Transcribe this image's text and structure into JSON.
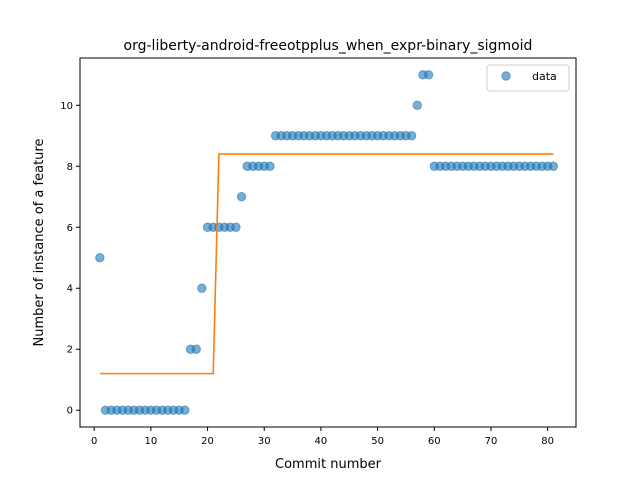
{
  "chart_data": {
    "type": "scatter",
    "title": "org-liberty-android-freeotpplus_when_expr-binary_sigmoid",
    "xlabel": "Commit number",
    "ylabel": "Number of instance of a feature",
    "xlim": [
      -2.5,
      85
    ],
    "ylim": [
      -0.55,
      11.55
    ],
    "xticks": [
      0,
      10,
      20,
      30,
      40,
      50,
      60,
      70,
      80
    ],
    "yticks": [
      0,
      2,
      4,
      6,
      8,
      10
    ],
    "grid": false,
    "legend_position": "top-right",
    "series": [
      {
        "name": "data",
        "kind": "scatter",
        "color": "#1f77b4",
        "x": [
          1,
          2,
          3,
          4,
          5,
          6,
          7,
          8,
          9,
          10,
          11,
          12,
          13,
          14,
          15,
          16,
          17,
          18,
          19,
          20,
          21,
          22,
          23,
          24,
          25,
          26,
          27,
          28,
          29,
          30,
          31,
          32,
          33,
          34,
          35,
          36,
          37,
          38,
          39,
          40,
          41,
          42,
          43,
          44,
          45,
          46,
          47,
          48,
          49,
          50,
          51,
          52,
          53,
          54,
          55,
          56,
          57,
          58,
          59,
          60,
          61,
          62,
          63,
          64,
          65,
          66,
          67,
          68,
          69,
          70,
          71,
          72,
          73,
          74,
          75,
          76,
          77,
          78,
          79,
          80,
          81
        ],
        "y": [
          5,
          0,
          0,
          0,
          0,
          0,
          0,
          0,
          0,
          0,
          0,
          0,
          0,
          0,
          0,
          0,
          2,
          2,
          4,
          6,
          6,
          6,
          6,
          6,
          6,
          7,
          8,
          8,
          8,
          8,
          8,
          9,
          9,
          9,
          9,
          9,
          9,
          9,
          9,
          9,
          9,
          9,
          9,
          9,
          9,
          9,
          9,
          9,
          9,
          9,
          9,
          9,
          9,
          9,
          9,
          9,
          10,
          11,
          11,
          8,
          8,
          8,
          8,
          8,
          8,
          8,
          8,
          8,
          8,
          8,
          8,
          8,
          8,
          8,
          8,
          8,
          8,
          8,
          8,
          8,
          8
        ]
      },
      {
        "name": "",
        "kind": "line",
        "color": "#ff7f0e",
        "x": [
          1,
          2,
          3,
          4,
          5,
          6,
          7,
          8,
          9,
          10,
          11,
          12,
          13,
          14,
          15,
          16,
          17,
          18,
          19,
          20,
          21,
          22,
          23,
          24,
          25,
          26,
          27,
          28,
          29,
          30,
          31,
          32,
          33,
          34,
          35,
          36,
          37,
          38,
          39,
          40,
          41,
          42,
          43,
          44,
          45,
          46,
          47,
          48,
          49,
          50,
          51,
          52,
          53,
          54,
          55,
          56,
          57,
          58,
          59,
          60,
          61,
          62,
          63,
          64,
          65,
          66,
          67,
          68,
          69,
          70,
          71,
          72,
          73,
          74,
          75,
          76,
          77,
          78,
          79,
          80,
          81
        ],
        "y": [
          1.2,
          1.2,
          1.2,
          1.2,
          1.2,
          1.2,
          1.2,
          1.2,
          1.2,
          1.2,
          1.2,
          1.2,
          1.2,
          1.2,
          1.2,
          1.2,
          1.2,
          1.2,
          1.2,
          1.2,
          1.2,
          8.4,
          8.4,
          8.4,
          8.4,
          8.4,
          8.4,
          8.4,
          8.4,
          8.4,
          8.4,
          8.4,
          8.4,
          8.4,
          8.4,
          8.4,
          8.4,
          8.4,
          8.4,
          8.4,
          8.4,
          8.4,
          8.4,
          8.4,
          8.4,
          8.4,
          8.4,
          8.4,
          8.4,
          8.4,
          8.4,
          8.4,
          8.4,
          8.4,
          8.4,
          8.4,
          8.4,
          8.4,
          8.4,
          8.4,
          8.4,
          8.4,
          8.4,
          8.4,
          8.4,
          8.4,
          8.4,
          8.4,
          8.4,
          8.4,
          8.4,
          8.4,
          8.4,
          8.4,
          8.4,
          8.4,
          8.4,
          8.4,
          8.4,
          8.4,
          8.4
        ]
      }
    ]
  }
}
